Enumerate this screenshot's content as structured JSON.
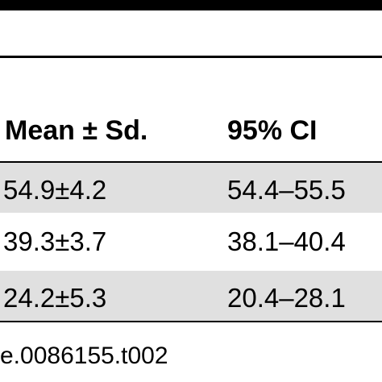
{
  "table": {
    "headers": [
      "Mean ± Sd.",
      "95% CI"
    ],
    "rows": [
      [
        "54.9±4.2",
        "54.4–55.5"
      ],
      [
        "39.3±3.7",
        "38.1–40.4"
      ],
      [
        "24.2±5.3",
        "20.4–28.1"
      ]
    ],
    "striped_row_color": "#e0e0e0"
  },
  "caption": "e.0086155.t002"
}
